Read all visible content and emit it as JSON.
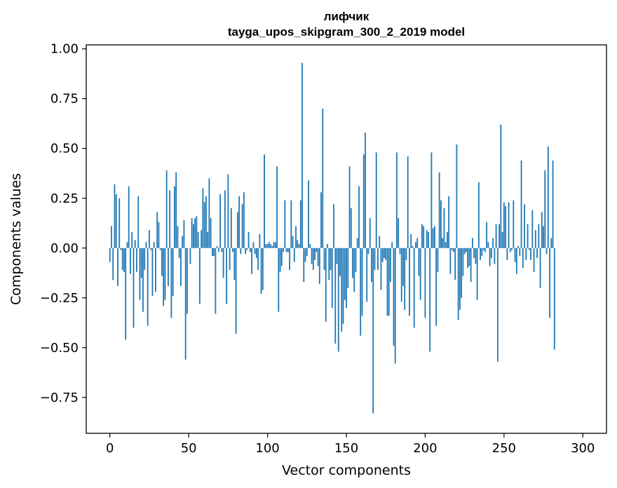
{
  "chart_data": {
    "type": "bar",
    "title": "лифчик",
    "subtitle": "tayga_upos_skipgram_300_2_2019 model",
    "xlabel": "Vector components",
    "ylabel": "Components values",
    "xlim": [
      -15,
      315
    ],
    "ylim": [
      -0.93,
      1.02
    ],
    "xticks": [
      0,
      50,
      100,
      150,
      200,
      250,
      300
    ],
    "xtick_labels": [
      "0",
      "50",
      "100",
      "150",
      "200",
      "250",
      "300"
    ],
    "yticks": [
      -0.75,
      -0.5,
      -0.25,
      0.0,
      0.25,
      0.5,
      0.75,
      1.0
    ],
    "ytick_labels": [
      "−0.75",
      "−0.50",
      "−0.25",
      "0.00",
      "0.25",
      "0.50",
      "0.75",
      "1.00"
    ],
    "bar_color": "#1f77b4",
    "grid": false,
    "legend": "none",
    "values": [
      -0.07,
      0.11,
      -0.16,
      0.32,
      0.27,
      -0.19,
      0.25,
      -0.01,
      -0.11,
      -0.12,
      -0.46,
      0.03,
      0.31,
      -0.13,
      0.08,
      -0.4,
      0.04,
      -0.12,
      0.26,
      -0.26,
      -0.15,
      -0.32,
      -0.11,
      0.03,
      -0.39,
      0.09,
      -0.01,
      -0.24,
      0.03,
      -0.22,
      0.18,
      0.13,
      -0.01,
      -0.14,
      -0.29,
      -0.26,
      0.39,
      -0.19,
      0.29,
      -0.35,
      -0.24,
      0.31,
      0.38,
      0.11,
      -0.05,
      -0.19,
      0.06,
      0.14,
      -0.56,
      -0.33,
      0.0,
      -0.08,
      0.15,
      0.12,
      0.15,
      0.16,
      0.08,
      -0.28,
      0.09,
      0.3,
      0.23,
      0.26,
      0.08,
      0.35,
      0.15,
      -0.04,
      -0.04,
      -0.33,
      0.01,
      -0.02,
      0.27,
      -0.02,
      -0.15,
      0.29,
      -0.28,
      0.37,
      -0.11,
      0.2,
      -0.02,
      -0.16,
      -0.43,
      0.18,
      0.26,
      -0.03,
      0.22,
      0.28,
      -0.03,
      -0.01,
      0.08,
      -0.02,
      -0.13,
      0.03,
      -0.03,
      -0.05,
      -0.11,
      0.07,
      -0.23,
      -0.21,
      0.47,
      0.02,
      0.02,
      0.03,
      0.02,
      0.01,
      0.03,
      0.03,
      0.41,
      -0.32,
      -0.12,
      -0.09,
      -0.02,
      0.24,
      -0.02,
      -0.02,
      -0.11,
      0.24,
      0.06,
      -0.07,
      0.11,
      0.04,
      0.02,
      0.24,
      0.93,
      -0.17,
      -0.07,
      -0.04,
      0.34,
      0.02,
      -0.08,
      -0.11,
      -0.06,
      -0.02,
      -0.09,
      -0.18,
      0.28,
      0.7,
      -0.11,
      -0.37,
      0.02,
      -0.16,
      -0.11,
      -0.3,
      0.22,
      -0.48,
      -0.08,
      -0.52,
      -0.14,
      -0.42,
      -0.38,
      -0.26,
      -0.3,
      -0.2,
      0.41,
      0.2,
      -0.15,
      -0.22,
      -0.12,
      0.05,
      0.31,
      -0.44,
      -0.34,
      0.47,
      0.58,
      -0.27,
      -0.03,
      0.15,
      -0.17,
      -0.83,
      -0.11,
      0.48,
      -0.11,
      0.06,
      -0.21,
      -0.07,
      -0.05,
      -0.06,
      -0.34,
      -0.34,
      -0.17,
      0.03,
      -0.49,
      -0.58,
      0.48,
      0.15,
      -0.03,
      -0.27,
      -0.19,
      -0.31,
      -0.06,
      0.46,
      -0.34,
      0.07,
      0.01,
      -0.4,
      0.03,
      0.05,
      -0.14,
      -0.26,
      0.12,
      0.11,
      -0.35,
      0.09,
      0.08,
      -0.52,
      0.48,
      0.1,
      0.11,
      -0.39,
      -0.12,
      0.38,
      0.24,
      0.05,
      0.2,
      0.03,
      0.08,
      0.26,
      -0.13,
      -0.01,
      -0.02,
      -0.16,
      0.52,
      -0.36,
      -0.31,
      -0.25,
      -0.14,
      -0.03,
      -0.02,
      -0.1,
      -0.09,
      -0.17,
      0.05,
      -0.05,
      -0.08,
      -0.26,
      0.33,
      -0.06,
      -0.04,
      -0.01,
      -0.02,
      0.13,
      0.03,
      -0.09,
      -0.05,
      0.05,
      -0.08,
      0.12,
      -0.57,
      0.12,
      0.62,
      0.08,
      0.23,
      0.21,
      -0.06,
      0.23,
      -0.02,
      -0.01,
      0.24,
      -0.07,
      -0.13,
      0.01,
      -0.04,
      0.44,
      -0.1,
      0.22,
      -0.06,
      0.12,
      -0.01,
      -0.06,
      0.19,
      -0.12,
      0.09,
      -0.05,
      0.12,
      -0.2,
      0.18,
      0.11,
      0.39,
      -0.03,
      0.51,
      -0.35,
      0.05,
      0.44,
      -0.51
    ]
  }
}
